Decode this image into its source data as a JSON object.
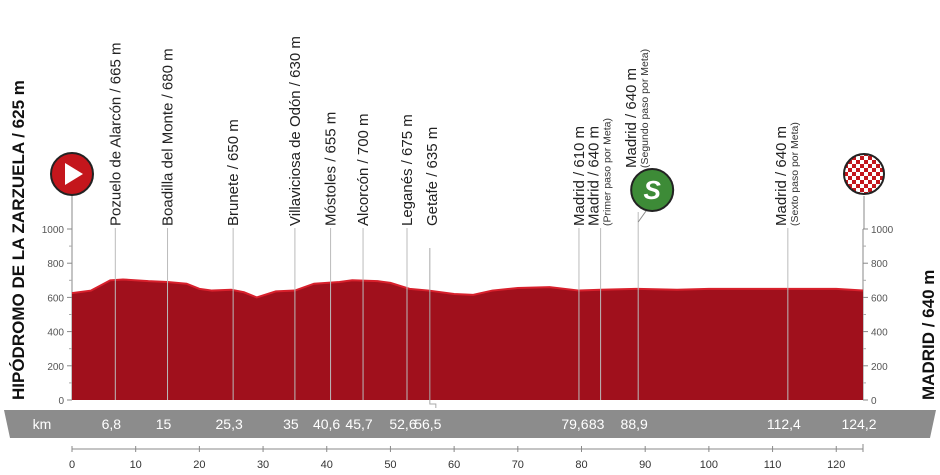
{
  "chart_data": {
    "type": "area",
    "start_label": "HIPÓDROMO DE LA ZARZUELA / 625 m",
    "finish_label": "MADRID / 640 m",
    "xlabel": "km",
    "xlim": [
      0,
      124.2
    ],
    "ylim": [
      0,
      1000
    ],
    "y_ticks": [
      0,
      200,
      400,
      600,
      800,
      1000
    ],
    "x_ticks": [
      0,
      10,
      20,
      30,
      40,
      50,
      60,
      70,
      80,
      90,
      100,
      110,
      120
    ],
    "fill_color": "#a0101c",
    "profile": {
      "x": [
        0,
        3,
        6,
        8,
        12,
        15,
        18,
        20,
        22,
        25,
        27,
        29,
        32,
        35,
        38,
        42,
        44,
        48,
        50,
        53,
        56,
        60,
        63,
        66,
        70,
        75,
        79.6,
        83,
        88.9,
        95,
        100,
        112.4,
        120,
        124.2
      ],
      "y": [
        625,
        640,
        700,
        705,
        695,
        690,
        680,
        650,
        640,
        645,
        630,
        600,
        635,
        640,
        680,
        690,
        700,
        695,
        685,
        650,
        640,
        620,
        615,
        640,
        655,
        660,
        640,
        645,
        650,
        645,
        650,
        650,
        650,
        640
      ]
    },
    "waypoints": [
      {
        "km": "6,8",
        "x": 6.8,
        "label": "Pozuelo de Alarcón / 665 m"
      },
      {
        "km": "15",
        "x": 15,
        "label": "Boadilla del Monte / 680 m"
      },
      {
        "km": "25,3",
        "x": 25.3,
        "label": "Brunete / 650 m"
      },
      {
        "km": "35",
        "x": 35,
        "label": "Villaviciosa de Odón / 630 m"
      },
      {
        "km": "40,6",
        "x": 40.6,
        "label": "Móstoles / 655 m"
      },
      {
        "km": "45,7",
        "x": 45.7,
        "label": "Alcorcón / 700 m"
      },
      {
        "km": "52,6",
        "x": 52.6,
        "label": "Leganés / 675 m"
      },
      {
        "km": "56,5",
        "x": 56.5,
        "label": "Getafe / 635 m"
      },
      {
        "km": "79,6",
        "x": 79.6,
        "label": "Madrid / 610 m"
      },
      {
        "km": "83",
        "x": 83,
        "label": "Madrid / 640 m",
        "sub": "(Primer paso por Meta)"
      },
      {
        "km": "88,9",
        "x": 88.9,
        "label": "Madrid / 640 m",
        "sub": "(Segundo paso por Meta)",
        "icon": "sprint-icon"
      },
      {
        "km": "112,4",
        "x": 112.4,
        "label": "Madrid / 640 m",
        "sub": "(Sexto paso por Meta)"
      },
      {
        "km": "124,2",
        "x": 124.2,
        "label": ""
      }
    ],
    "icons": {
      "start": "start-play-icon",
      "finish": "finish-checkered-icon",
      "sprint": "sprint-icon",
      "sprint_letter": "S"
    },
    "colors": {
      "start": "#c4161c",
      "sprint": "#3d8b37",
      "band": "#8c8c8c"
    }
  }
}
